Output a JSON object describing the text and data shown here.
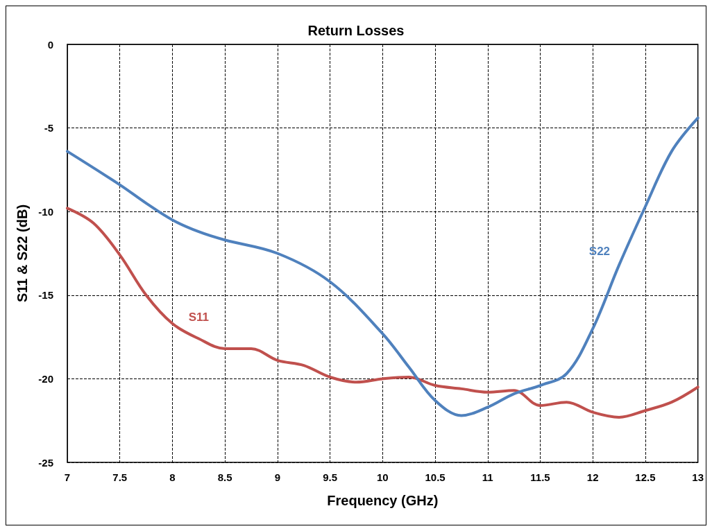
{
  "chart_data": {
    "type": "line",
    "title": "Return Losses",
    "xlabel": "Frequency (GHz)",
    "ylabel": "S11 & S22 (dB)",
    "xlim": [
      7,
      13
    ],
    "xticks": [
      7,
      7.5,
      8,
      8.5,
      9,
      9.5,
      10,
      10.5,
      11,
      11.5,
      12,
      12.5,
      13
    ],
    "ylim": [
      -25,
      0
    ],
    "yticks": [
      -25,
      -20,
      -15,
      -10,
      -5,
      0
    ],
    "grid": true,
    "legend": false,
    "marker": "none",
    "line_style": "solid",
    "series": [
      {
        "name": "S11",
        "color": "#c0504d",
        "x": [
          7,
          7.25,
          7.5,
          7.75,
          8,
          8.25,
          8.5,
          8.75,
          9,
          9.25,
          9.5,
          9.75,
          10,
          10.25,
          10.5,
          10.75,
          11,
          11.25,
          11.5,
          11.75,
          12,
          12.25,
          12.5,
          12.75,
          13
        ],
        "values": [
          -9.8,
          -10.7,
          -12.6,
          -15.0,
          -16.7,
          -17.6,
          -18.2,
          -18.2,
          -18.9,
          -19.2,
          -19.9,
          -20.2,
          -20.0,
          -19.9,
          -20.4,
          -20.6,
          -20.8,
          -20.7,
          -21.6,
          -21.4,
          -22.0,
          -22.3,
          -21.9,
          -21.4,
          -20.5
        ]
      },
      {
        "name": "S22",
        "color": "#4f81bd",
        "x": [
          7,
          7.5,
          7.75,
          8,
          8.25,
          8.5,
          9,
          9.5,
          10,
          10.25,
          10.5,
          10.75,
          11,
          11.25,
          11.5,
          11.75,
          12,
          12.25,
          12.5,
          12.75,
          13
        ],
        "values": [
          -6.4,
          -8.4,
          -9.5,
          -10.5,
          -11.2,
          -11.7,
          -12.5,
          -14.2,
          -17.3,
          -19.3,
          -21.3,
          -22.2,
          -21.7,
          -20.9,
          -20.4,
          -19.7,
          -17.0,
          -13.2,
          -9.7,
          -6.4,
          -4.4
        ]
      }
    ]
  }
}
